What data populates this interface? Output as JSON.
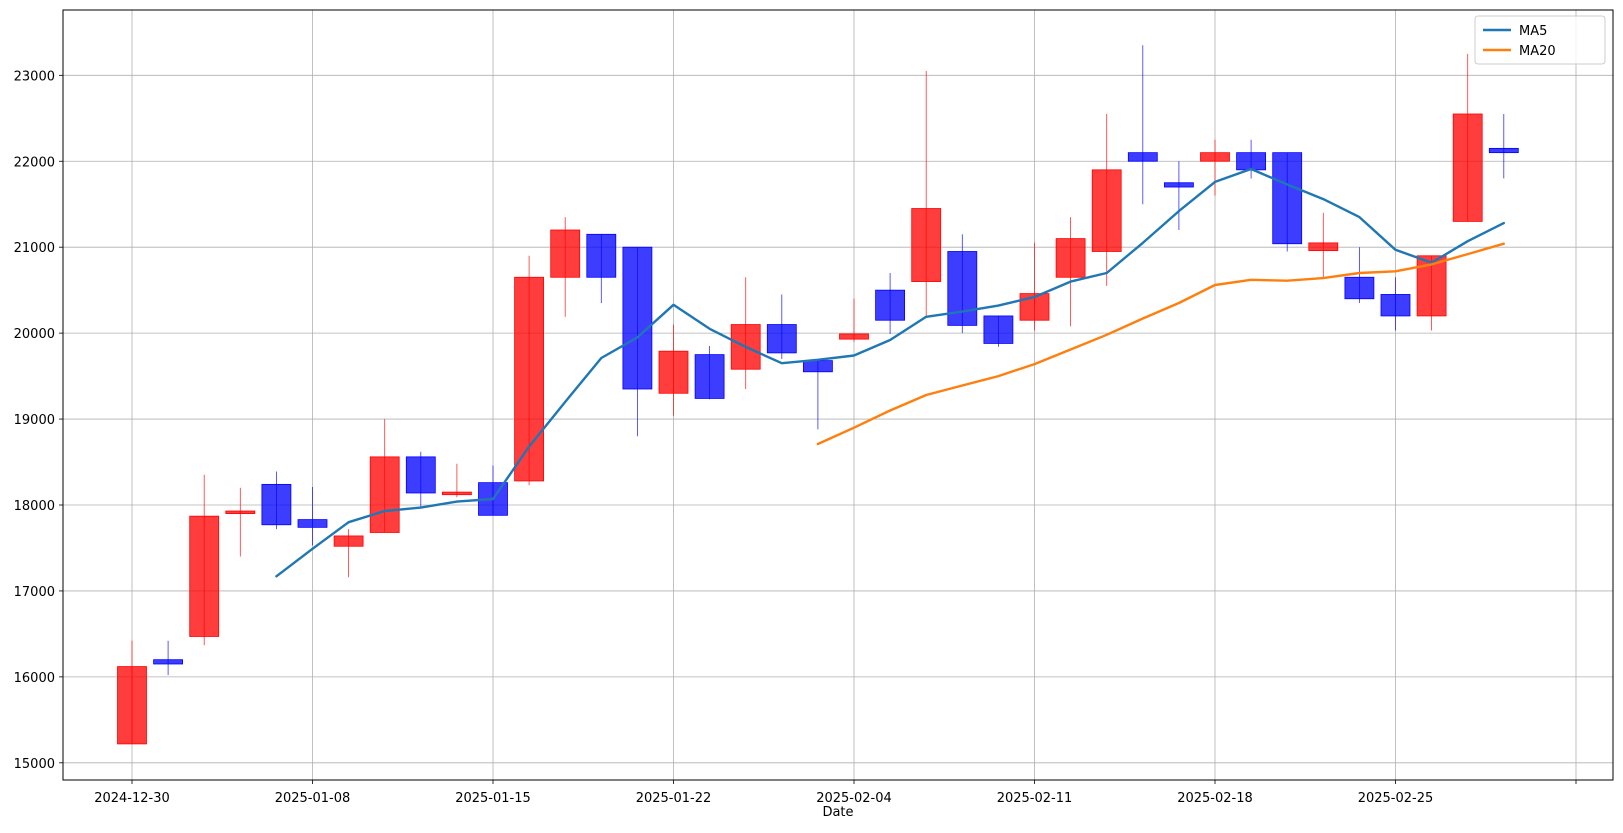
{
  "chart_data": {
    "type": "candlestick",
    "xlabel": "Date",
    "ylabel": "",
    "title": "",
    "ylim": [
      14800,
      23760
    ],
    "grid": true,
    "legend_position": "top-right",
    "colors": {
      "up": "#ff0000",
      "down": "#0000ff",
      "ma5": "#1f77b4",
      "ma20": "#ff7f0e"
    },
    "x_tick_labels": [
      "2024-12-30",
      "2025-01-08",
      "2025-01-15",
      "2025-01-22",
      "2025-02-04",
      "2025-02-11",
      "2025-02-18",
      "2025-02-25",
      ""
    ],
    "x_tick_slots": [
      0,
      5,
      10,
      15,
      20,
      25,
      30,
      35,
      40
    ],
    "y_ticks": [
      15000,
      16000,
      17000,
      18000,
      19000,
      20000,
      21000,
      22000,
      23000
    ],
    "candles": [
      {
        "date": "2024-12-30",
        "open": 15220,
        "high": 16420,
        "low": 15220,
        "close": 16120
      },
      {
        "date": "2025-01-02",
        "open": 16200,
        "high": 16420,
        "low": 16020,
        "close": 16150
      },
      {
        "date": "2025-01-03",
        "open": 16470,
        "high": 18350,
        "low": 16370,
        "close": 17870
      },
      {
        "date": "2025-01-06",
        "open": 17900,
        "high": 18200,
        "low": 17400,
        "close": 17930
      },
      {
        "date": "2025-01-07",
        "open": 18240,
        "high": 18390,
        "low": 17720,
        "close": 17770
      },
      {
        "date": "2025-01-08",
        "open": 17830,
        "high": 18210,
        "low": 17530,
        "close": 17740
      },
      {
        "date": "2025-01-09",
        "open": 17520,
        "high": 17720,
        "low": 17160,
        "close": 17640
      },
      {
        "date": "2025-01-10",
        "open": 17680,
        "high": 19000,
        "low": 17680,
        "close": 18560
      },
      {
        "date": "2025-01-13",
        "open": 18560,
        "high": 18620,
        "low": 17980,
        "close": 18140
      },
      {
        "date": "2025-01-14",
        "open": 18120,
        "high": 18480,
        "low": 18090,
        "close": 18150
      },
      {
        "date": "2025-01-15",
        "open": 18260,
        "high": 18460,
        "low": 17880,
        "close": 17880
      },
      {
        "date": "2025-01-16",
        "open": 18280,
        "high": 20900,
        "low": 18230,
        "close": 20650
      },
      {
        "date": "2025-01-17",
        "open": 20650,
        "high": 21350,
        "low": 20190,
        "close": 21200
      },
      {
        "date": "2025-01-20",
        "open": 21150,
        "high": 21150,
        "low": 20350,
        "close": 20650
      },
      {
        "date": "2025-01-21",
        "open": 21000,
        "high": 21000,
        "low": 18800,
        "close": 19350
      },
      {
        "date": "2025-01-22",
        "open": 19300,
        "high": 20100,
        "low": 19040,
        "close": 19790
      },
      {
        "date": "2025-01-23",
        "open": 19750,
        "high": 19850,
        "low": 19230,
        "close": 19240
      },
      {
        "date": "2025-01-24",
        "open": 19580,
        "high": 20650,
        "low": 19350,
        "close": 20100
      },
      {
        "date": "2025-01-27",
        "open": 20100,
        "high": 20450,
        "low": 19700,
        "close": 19770
      },
      {
        "date": "2025-01-28",
        "open": 19680,
        "high": 19700,
        "low": 18880,
        "close": 19550
      },
      {
        "date": "2025-02-04",
        "open": 19930,
        "high": 20400,
        "low": 19900,
        "close": 19990
      },
      {
        "date": "2025-02-05",
        "open": 20500,
        "high": 20700,
        "low": 19990,
        "close": 20150
      },
      {
        "date": "2025-02-06",
        "open": 20600,
        "high": 23050,
        "low": 20200,
        "close": 21450
      },
      {
        "date": "2025-02-07",
        "open": 20950,
        "high": 21150,
        "low": 20000,
        "close": 20090
      },
      {
        "date": "2025-02-10",
        "open": 20200,
        "high": 20200,
        "low": 19840,
        "close": 19880
      },
      {
        "date": "2025-02-11",
        "open": 20150,
        "high": 21050,
        "low": 20030,
        "close": 20460
      },
      {
        "date": "2025-02-12",
        "open": 20650,
        "high": 21350,
        "low": 20080,
        "close": 21100
      },
      {
        "date": "2025-02-13",
        "open": 20950,
        "high": 22550,
        "low": 20550,
        "close": 21900
      },
      {
        "date": "2025-02-14",
        "open": 22100,
        "high": 23350,
        "low": 21500,
        "close": 22000
      },
      {
        "date": "2025-02-17",
        "open": 21750,
        "high": 22000,
        "low": 21200,
        "close": 21700
      },
      {
        "date": "2025-02-18",
        "open": 22000,
        "high": 22250,
        "low": 21600,
        "close": 22100
      },
      {
        "date": "2025-02-19",
        "open": 22100,
        "high": 22250,
        "low": 21800,
        "close": 21900
      },
      {
        "date": "2025-02-20",
        "open": 22100,
        "high": 22100,
        "low": 20950,
        "close": 21040
      },
      {
        "date": "2025-02-21",
        "open": 20960,
        "high": 21400,
        "low": 20650,
        "close": 21050
      },
      {
        "date": "2025-02-24",
        "open": 20650,
        "high": 21000,
        "low": 20350,
        "close": 20400
      },
      {
        "date": "2025-02-25",
        "open": 20450,
        "high": 20650,
        "low": 20030,
        "close": 20200
      },
      {
        "date": "2025-02-26",
        "open": 20200,
        "high": 20900,
        "low": 20030,
        "close": 20900
      },
      {
        "date": "2025-02-27",
        "open": 21300,
        "high": 23250,
        "low": 21300,
        "close": 22550
      },
      {
        "date": "2025-02-28",
        "open": 22150,
        "high": 22550,
        "low": 21800,
        "close": 22100
      }
    ],
    "series": [
      {
        "name": "MA5",
        "start_index": 4,
        "values": [
          17170,
          17490,
          17800,
          17930,
          17970,
          18040,
          18070,
          18680,
          19200,
          19710,
          19950,
          20330,
          20050,
          19840,
          19650,
          19690,
          19740,
          19920,
          20190,
          20250,
          20320,
          20420,
          20600,
          20700,
          21050,
          21420,
          21760,
          21910,
          21730,
          21560,
          21350,
          20970,
          20820,
          21070,
          21280
        ]
      },
      {
        "name": "MA20",
        "start_index": 19,
        "values": [
          18710,
          18900,
          19100,
          19280,
          19390,
          19500,
          19640,
          19810,
          19980,
          20170,
          20350,
          20560,
          20620,
          20610,
          20640,
          20700,
          20720,
          20800,
          20920,
          21040
        ]
      }
    ]
  }
}
